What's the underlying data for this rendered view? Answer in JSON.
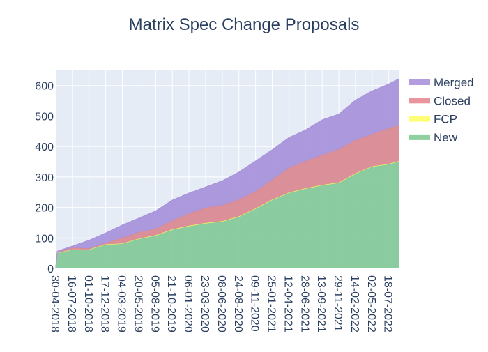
{
  "chart_data": {
    "type": "area",
    "stacked": true,
    "title": "Matrix Spec Change Proposals",
    "xlabel": "",
    "ylabel": "",
    "x": [
      "2018-04-30",
      "2018-05-07",
      "2018-07-16",
      "2018-10-01",
      "2018-12-17",
      "2019-03-04",
      "2019-05-20",
      "2019-08-05",
      "2019-10-21",
      "2020-01-06",
      "2020-03-23",
      "2020-06-08",
      "2020-08-24",
      "2020-11-09",
      "2021-01-25",
      "2021-04-12",
      "2021-06-28",
      "2021-09-13",
      "2021-11-29",
      "2022-02-14",
      "2022-05-02",
      "2022-07-18",
      "2022-09-02"
    ],
    "xlim": [
      "2018-04-30",
      "2022-09-02"
    ],
    "ylim": [
      0,
      652
    ],
    "x_ticks": [
      "30-04-2018",
      "16-07-2018",
      "01-10-2018",
      "17-12-2018",
      "04-03-2019",
      "20-05-2019",
      "05-08-2019",
      "21-10-2019",
      "06-01-2020",
      "23-03-2020",
      "08-06-2020",
      "24-08-2020",
      "09-11-2020",
      "25-01-2021",
      "12-04-2021",
      "28-06-2021",
      "13-09-2021",
      "29-11-2021",
      "14-02-2022",
      "02-05-2022",
      "18-07-2022"
    ],
    "y_ticks": [
      0,
      100,
      200,
      300,
      400,
      500,
      600
    ],
    "grid": true,
    "legend_position": "right",
    "series": [
      {
        "name": "New",
        "color": "#86c99b",
        "legend_color": "#8fd0a0",
        "values": [
          0,
          50,
          61,
          61,
          77,
          80,
          96,
          107,
          126,
          138,
          147,
          153,
          169,
          195,
          224,
          247,
          261,
          272,
          280,
          310,
          333,
          341,
          350
        ]
      },
      {
        "name": "FCP",
        "color": "#eef06a",
        "legend_color": "#ffff77",
        "values": [
          0,
          1,
          1,
          1,
          2,
          2,
          2,
          2,
          2,
          2,
          2,
          2,
          2,
          2,
          2,
          2,
          2,
          2,
          2,
          2,
          2,
          2,
          2
        ]
      },
      {
        "name": "Closed",
        "color": "#d98a94",
        "legend_color": "#e8959c",
        "values": [
          0,
          2,
          6,
          3,
          5,
          18,
          21,
          21,
          29,
          40,
          50,
          52,
          55,
          56,
          65,
          81,
          89,
          98,
          109,
          109,
          106,
          117,
          117
        ]
      },
      {
        "name": "Merged",
        "color": "#a993db",
        "legend_color": "#b39ddf",
        "values": [
          0,
          3,
          5,
          27,
          32,
          42,
          46,
          58,
          67,
          67,
          68,
          80,
          90,
          99,
          98,
          99,
          102,
          115,
          115,
          131,
          141,
          145,
          153
        ]
      }
    ]
  }
}
